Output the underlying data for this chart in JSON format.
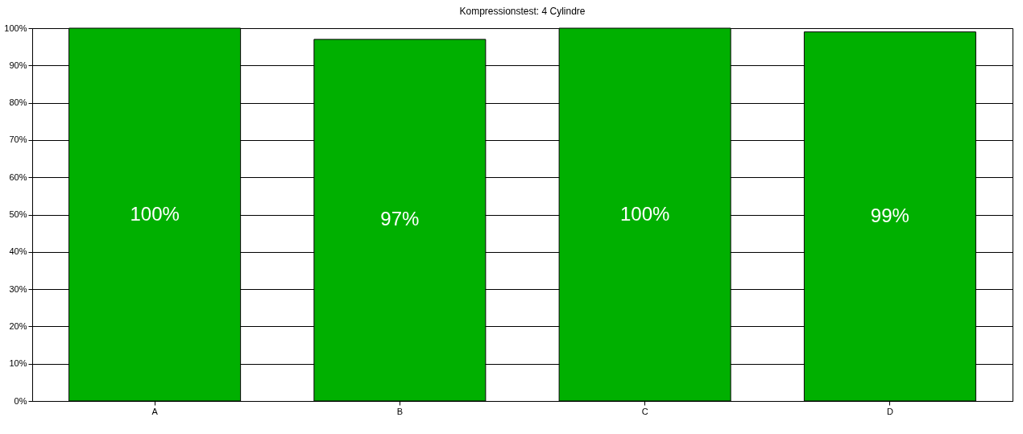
{
  "chart_data": {
    "type": "bar",
    "title": "Kompressionstest: 4 Cylindre",
    "categories": [
      "A",
      "B",
      "C",
      "D"
    ],
    "series": [
      {
        "color": "#00b000",
        "values": [
          100,
          97,
          100,
          99
        ],
        "value_labels": [
          "100%",
          "97%",
          "100%",
          "99%"
        ]
      }
    ],
    "ylim": [
      0,
      100
    ],
    "yticks": [
      {
        "value": 0,
        "label": "0%"
      },
      {
        "value": 10,
        "label": "10%"
      },
      {
        "value": 20,
        "label": "20%"
      },
      {
        "value": 30,
        "label": "30%"
      },
      {
        "value": 40,
        "label": "40%"
      },
      {
        "value": 50,
        "label": "50%"
      },
      {
        "value": 60,
        "label": "60%"
      },
      {
        "value": 70,
        "label": "70%"
      },
      {
        "value": 80,
        "label": "80%"
      },
      {
        "value": 90,
        "label": "90%"
      },
      {
        "value": 100,
        "label": "100%"
      }
    ],
    "grid": "y"
  }
}
